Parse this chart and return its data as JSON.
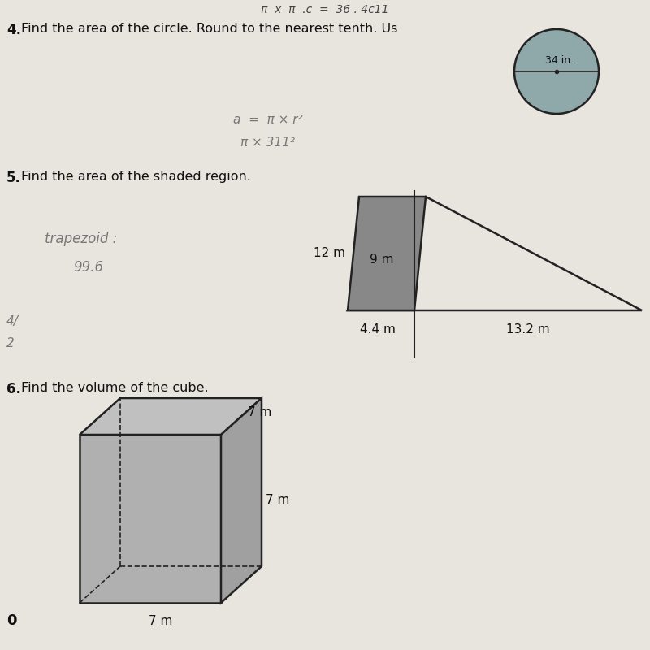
{
  "bg_color": "#e8e4de",
  "title4": "4. Find the area of the circle. Round to the nearest tenth. Us",
  "title5": "5. Find the area of the shaded region.",
  "title6": "6. Find the volume of the cube.",
  "circle_diameter_label": "34 in.",
  "para_height_label": "12 m",
  "para_width_label": "9 m",
  "tri_base1_label": "4.4 m",
  "tri_base2_label": "13.2 m",
  "cube_label": "7 m",
  "shaded_color": "#888888",
  "circle_color": "#8fa8aa",
  "line_color": "#222222",
  "text_color": "#111111",
  "handwrite_color": "#777777",
  "cube_front_color": "#b0b0b0",
  "cube_top_color": "#c0c0c0",
  "cube_right_color": "#a0a0a0"
}
